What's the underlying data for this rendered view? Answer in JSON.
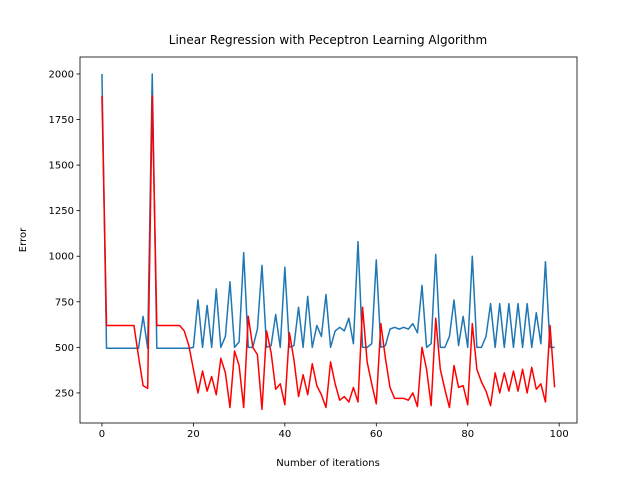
{
  "chart_data": {
    "type": "line",
    "title": "Linear Regression with Peceptron Learning Algorithm",
    "x_label": "Number of iterations",
    "y_label": "Error",
    "x": [
      0,
      1,
      2,
      3,
      4,
      5,
      6,
      7,
      8,
      9,
      10,
      11,
      12,
      13,
      14,
      15,
      16,
      17,
      18,
      19,
      20,
      21,
      22,
      23,
      24,
      25,
      26,
      27,
      28,
      29,
      30,
      31,
      32,
      33,
      34,
      35,
      36,
      37,
      38,
      39,
      40,
      41,
      42,
      43,
      44,
      45,
      46,
      47,
      48,
      49,
      50,
      51,
      52,
      53,
      54,
      55,
      56,
      57,
      58,
      59,
      60,
      61,
      62,
      63,
      64,
      65,
      66,
      67,
      68,
      69,
      70,
      71,
      72,
      73,
      74,
      75,
      76,
      77,
      78,
      79,
      80,
      81,
      82,
      83,
      84,
      85,
      86,
      87,
      88,
      89,
      90,
      91,
      92,
      93,
      94,
      95,
      96,
      97,
      98,
      99
    ],
    "series": [
      {
        "color": "#1f77b4",
        "values": [
          2000,
          495,
          495,
          495,
          495,
          495,
          495,
          495,
          495,
          670,
          495,
          2000,
          495,
          495,
          495,
          495,
          495,
          495,
          495,
          495,
          500,
          760,
          500,
          730,
          500,
          820,
          500,
          560,
          860,
          500,
          530,
          1020,
          500,
          500,
          600,
          950,
          500,
          510,
          680,
          500,
          940,
          500,
          510,
          720,
          500,
          780,
          500,
          620,
          560,
          790,
          500,
          590,
          610,
          590,
          660,
          520,
          1080,
          500,
          500,
          520,
          980,
          500,
          510,
          600,
          610,
          600,
          610,
          600,
          630,
          580,
          840,
          500,
          520,
          1010,
          500,
          500,
          560,
          760,
          510,
          670,
          500,
          1000,
          500,
          500,
          560,
          740,
          500,
          740,
          500,
          740,
          500,
          740,
          500,
          740,
          500,
          690,
          520,
          970,
          500,
          500
        ]
      },
      {
        "color": "#ff0000",
        "values": [
          1880,
          620,
          620,
          620,
          620,
          620,
          620,
          620,
          450,
          290,
          275,
          1880,
          620,
          620,
          620,
          620,
          620,
          620,
          590,
          510,
          380,
          250,
          370,
          260,
          340,
          240,
          440,
          360,
          170,
          480,
          400,
          170,
          670,
          500,
          460,
          160,
          590,
          470,
          270,
          300,
          185,
          580,
          430,
          230,
          350,
          240,
          410,
          290,
          240,
          170,
          420,
          300,
          210,
          230,
          200,
          280,
          200,
          720,
          420,
          300,
          190,
          630,
          440,
          280,
          220,
          220,
          220,
          210,
          250,
          175,
          500,
          380,
          180,
          660,
          380,
          270,
          170,
          400,
          280,
          290,
          185,
          630,
          380,
          310,
          260,
          180,
          360,
          250,
          360,
          260,
          370,
          260,
          380,
          250,
          390,
          270,
          300,
          200,
          620,
          280
        ]
      }
    ],
    "xlim": [
      -4.8,
      103.9
    ],
    "ylim": [
      85,
      2093
    ],
    "xticks": [
      0,
      20,
      40,
      60,
      80,
      100
    ],
    "yticks": [
      250,
      500,
      750,
      1000,
      1250,
      1500,
      1750,
      2000
    ]
  }
}
